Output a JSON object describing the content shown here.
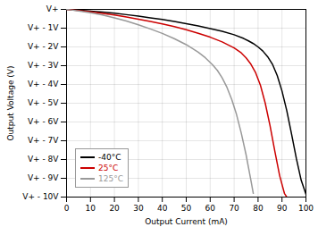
{
  "chart_data": {
    "type": "line",
    "xlabel": "Output Current (mA)",
    "ylabel": "Output Voltage (V)",
    "xlim": [
      0,
      100
    ],
    "ylim": [
      -10,
      0
    ],
    "xticks": [
      0,
      10,
      20,
      30,
      40,
      50,
      60,
      70,
      80,
      90,
      100
    ],
    "yticks": [
      {
        "value": 0,
        "label": "V+"
      },
      {
        "value": -1,
        "label": "V+ - 1V"
      },
      {
        "value": -2,
        "label": "V+ - 2V"
      },
      {
        "value": -3,
        "label": "V+ - 3V"
      },
      {
        "value": -4,
        "label": "V+ - 4V"
      },
      {
        "value": -5,
        "label": "V+ - 5V"
      },
      {
        "value": -6,
        "label": "V+ - 6V"
      },
      {
        "value": -7,
        "label": "V+ - 7V"
      },
      {
        "value": -8,
        "label": "V+ - 8V"
      },
      {
        "value": -9,
        "label": "V+ - 9V"
      },
      {
        "value": -10,
        "label": "V+ - 10V"
      }
    ],
    "grid": true,
    "legend": "lower left",
    "series": [
      {
        "name": "-40°C",
        "color": "#000000",
        "x": [
          0,
          2,
          5,
          10,
          15,
          20,
          25,
          30,
          35,
          40,
          45,
          50,
          55,
          60,
          65,
          70,
          74,
          76,
          78,
          80,
          82,
          84,
          86,
          88,
          90,
          92,
          94,
          96,
          98,
          100
        ],
        "values": [
          0,
          -0.02,
          -0.04,
          -0.09,
          -0.14,
          -0.2,
          -0.28,
          -0.36,
          -0.45,
          -0.54,
          -0.64,
          -0.76,
          -0.88,
          -1.02,
          -1.17,
          -1.35,
          -1.55,
          -1.68,
          -1.82,
          -2.0,
          -2.22,
          -2.52,
          -2.92,
          -3.52,
          -4.35,
          -5.4,
          -6.65,
          -7.95,
          -9.1,
          -9.85
        ]
      },
      {
        "name": "25°C",
        "color": "#cc0000",
        "x": [
          0,
          2,
          5,
          10,
          15,
          20,
          25,
          30,
          35,
          40,
          45,
          50,
          55,
          60,
          65,
          70,
          73,
          75,
          77,
          79,
          81,
          83,
          85,
          87,
          89,
          91,
          92
        ],
        "values": [
          0,
          -0.02,
          -0.06,
          -0.13,
          -0.21,
          -0.3,
          -0.41,
          -0.52,
          -0.64,
          -0.77,
          -0.92,
          -1.08,
          -1.27,
          -1.48,
          -1.73,
          -2.05,
          -2.32,
          -2.58,
          -2.92,
          -3.38,
          -4.05,
          -5.0,
          -6.2,
          -7.55,
          -8.85,
          -9.8,
          -10.0
        ]
      },
      {
        "name": "125°C",
        "color": "#999999",
        "x": [
          0,
          2,
          5,
          10,
          15,
          20,
          25,
          30,
          35,
          40,
          45,
          50,
          55,
          58,
          61,
          63,
          65,
          67,
          69,
          71,
          73,
          75,
          77,
          78
        ],
        "values": [
          0,
          -0.03,
          -0.08,
          -0.18,
          -0.3,
          -0.45,
          -0.62,
          -0.82,
          -1.04,
          -1.28,
          -1.56,
          -1.88,
          -2.28,
          -2.58,
          -2.95,
          -3.25,
          -3.65,
          -4.15,
          -4.8,
          -5.6,
          -6.6,
          -7.75,
          -9.1,
          -9.8
        ]
      }
    ]
  }
}
